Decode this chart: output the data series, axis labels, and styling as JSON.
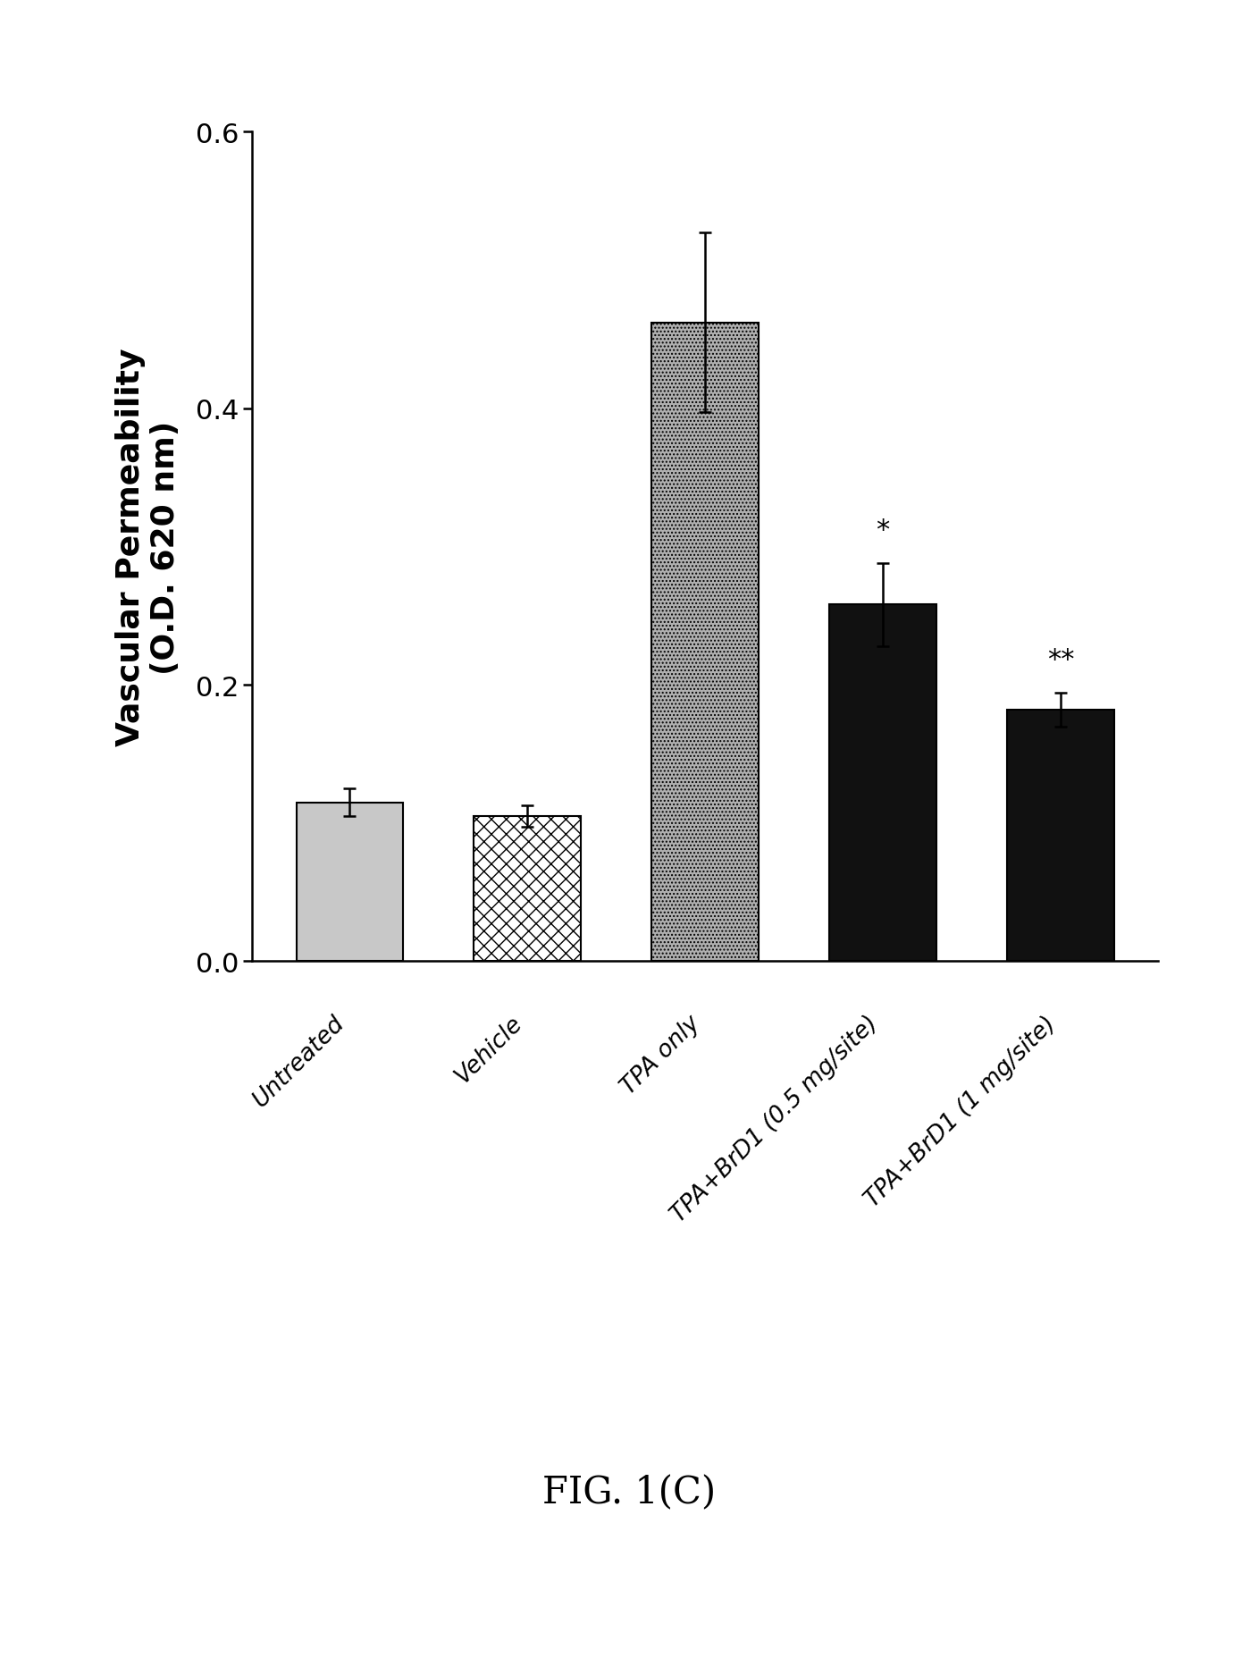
{
  "categories": [
    "Untreated",
    "Vehicle",
    "TPA only",
    "TPA+BrD1 (0.5 mg/site)",
    "TPA+BrD1 (1 mg/site)"
  ],
  "values": [
    0.115,
    0.105,
    0.462,
    0.258,
    0.182
  ],
  "errors": [
    0.01,
    0.008,
    0.065,
    0.03,
    0.012
  ],
  "significance": [
    "",
    "",
    "",
    "*",
    "**"
  ],
  "ylabel": "Vascular Permeability\n(O.D. 620 nm)",
  "ylim": [
    0.0,
    0.6
  ],
  "yticks": [
    0.0,
    0.2,
    0.4,
    0.6
  ],
  "figure_label": "FIG. 1(C)",
  "background_color": "#ffffff",
  "bar_width": 0.6,
  "capsize": 5
}
